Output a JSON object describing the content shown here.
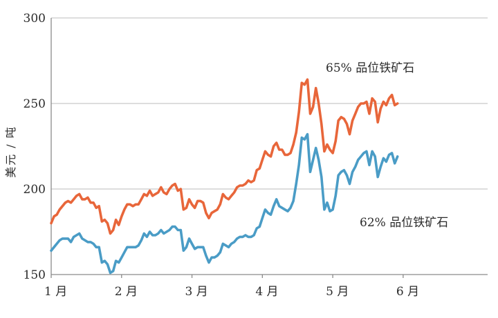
{
  "chart_data": {
    "type": "line",
    "title": "",
    "xlabel": "",
    "ylabel": "美元 / 吨",
    "ylim": [
      150,
      300
    ],
    "yticks": [
      150,
      200,
      250,
      300
    ],
    "xlim": [
      0,
      6.2
    ],
    "x_ticks": [
      {
        "label": "1 月",
        "pos": 0
      },
      {
        "label": "2 月",
        "pos": 1
      },
      {
        "label": "3 月",
        "pos": 2
      },
      {
        "label": "4 月",
        "pos": 3
      },
      {
        "label": "5 月",
        "pos": 4
      },
      {
        "label": "6 月",
        "pos": 5
      }
    ],
    "grid": true,
    "colors": {
      "fe65": "#e8663a",
      "fe62": "#4a9cc6",
      "grid": "#d2d2d2",
      "axis": "#8a8a8a"
    },
    "series": [
      {
        "name": "65% 品位铁矿石",
        "key": "fe65",
        "points": [
          [
            0.0,
            180
          ],
          [
            0.04,
            184
          ],
          [
            0.08,
            185
          ],
          [
            0.12,
            188
          ],
          [
            0.16,
            190
          ],
          [
            0.2,
            192
          ],
          [
            0.24,
            193
          ],
          [
            0.28,
            192
          ],
          [
            0.32,
            194
          ],
          [
            0.36,
            196
          ],
          [
            0.4,
            197
          ],
          [
            0.44,
            194
          ],
          [
            0.48,
            194
          ],
          [
            0.52,
            195
          ],
          [
            0.56,
            192
          ],
          [
            0.6,
            192
          ],
          [
            0.64,
            189
          ],
          [
            0.68,
            190
          ],
          [
            0.72,
            181
          ],
          [
            0.76,
            182
          ],
          [
            0.8,
            180
          ],
          [
            0.84,
            174
          ],
          [
            0.88,
            176
          ],
          [
            0.92,
            182
          ],
          [
            0.96,
            179
          ],
          [
            1.0,
            184
          ],
          [
            1.04,
            188
          ],
          [
            1.08,
            191
          ],
          [
            1.12,
            191
          ],
          [
            1.16,
            190
          ],
          [
            1.2,
            191
          ],
          [
            1.24,
            191
          ],
          [
            1.28,
            194
          ],
          [
            1.32,
            197
          ],
          [
            1.36,
            196
          ],
          [
            1.4,
            199
          ],
          [
            1.44,
            196
          ],
          [
            1.48,
            197
          ],
          [
            1.52,
            198
          ],
          [
            1.56,
            201
          ],
          [
            1.6,
            198
          ],
          [
            1.64,
            197
          ],
          [
            1.68,
            200
          ],
          [
            1.72,
            202
          ],
          [
            1.76,
            203
          ],
          [
            1.8,
            199
          ],
          [
            1.84,
            200
          ],
          [
            1.88,
            188
          ],
          [
            1.92,
            189
          ],
          [
            1.96,
            194
          ],
          [
            2.0,
            191
          ],
          [
            2.04,
            189
          ],
          [
            2.08,
            193
          ],
          [
            2.12,
            193
          ],
          [
            2.16,
            192
          ],
          [
            2.2,
            186
          ],
          [
            2.24,
            183
          ],
          [
            2.28,
            186
          ],
          [
            2.32,
            187
          ],
          [
            2.36,
            188
          ],
          [
            2.4,
            191
          ],
          [
            2.44,
            197
          ],
          [
            2.48,
            195
          ],
          [
            2.52,
            194
          ],
          [
            2.56,
            196
          ],
          [
            2.6,
            198
          ],
          [
            2.64,
            201
          ],
          [
            2.68,
            202
          ],
          [
            2.72,
            202
          ],
          [
            2.76,
            203
          ],
          [
            2.8,
            205
          ],
          [
            2.84,
            204
          ],
          [
            2.88,
            205
          ],
          [
            2.92,
            211
          ],
          [
            2.96,
            212
          ],
          [
            3.0,
            217
          ],
          [
            3.04,
            222
          ],
          [
            3.08,
            220
          ],
          [
            3.12,
            219
          ],
          [
            3.16,
            225
          ],
          [
            3.2,
            227
          ],
          [
            3.24,
            223
          ],
          [
            3.28,
            223
          ],
          [
            3.32,
            220
          ],
          [
            3.36,
            220
          ],
          [
            3.4,
            221
          ],
          [
            3.44,
            226
          ],
          [
            3.48,
            233
          ],
          [
            3.52,
            245
          ],
          [
            3.56,
            262
          ],
          [
            3.6,
            261
          ],
          [
            3.64,
            264
          ],
          [
            3.68,
            244
          ],
          [
            3.72,
            248
          ],
          [
            3.76,
            259
          ],
          [
            3.8,
            250
          ],
          [
            3.84,
            238
          ],
          [
            3.88,
            222
          ],
          [
            3.92,
            226
          ],
          [
            3.96,
            223
          ],
          [
            4.0,
            221
          ],
          [
            4.04,
            228
          ],
          [
            4.08,
            240
          ],
          [
            4.12,
            242
          ],
          [
            4.16,
            241
          ],
          [
            4.2,
            238
          ],
          [
            4.24,
            232
          ],
          [
            4.28,
            240
          ],
          [
            4.32,
            244
          ],
          [
            4.36,
            248
          ],
          [
            4.4,
            250
          ],
          [
            4.44,
            250
          ],
          [
            4.48,
            251
          ],
          [
            4.52,
            244
          ],
          [
            4.56,
            253
          ],
          [
            4.6,
            251
          ],
          [
            4.64,
            239
          ],
          [
            4.68,
            247
          ],
          [
            4.72,
            251
          ],
          [
            4.76,
            249
          ],
          [
            4.8,
            253
          ],
          [
            4.84,
            255
          ],
          [
            4.88,
            249
          ],
          [
            4.92,
            250
          ]
        ]
      },
      {
        "name": "62% 品位铁矿石",
        "key": "fe62",
        "points": [
          [
            0.0,
            164
          ],
          [
            0.04,
            166
          ],
          [
            0.08,
            168
          ],
          [
            0.12,
            170
          ],
          [
            0.16,
            171
          ],
          [
            0.2,
            171
          ],
          [
            0.24,
            171
          ],
          [
            0.28,
            169
          ],
          [
            0.32,
            172
          ],
          [
            0.36,
            173
          ],
          [
            0.4,
            174
          ],
          [
            0.44,
            171
          ],
          [
            0.48,
            170
          ],
          [
            0.52,
            169
          ],
          [
            0.56,
            169
          ],
          [
            0.6,
            168
          ],
          [
            0.64,
            166
          ],
          [
            0.68,
            166
          ],
          [
            0.72,
            157
          ],
          [
            0.76,
            158
          ],
          [
            0.8,
            156
          ],
          [
            0.84,
            151
          ],
          [
            0.88,
            152
          ],
          [
            0.92,
            158
          ],
          [
            0.96,
            157
          ],
          [
            1.0,
            160
          ],
          [
            1.04,
            163
          ],
          [
            1.08,
            166
          ],
          [
            1.12,
            166
          ],
          [
            1.16,
            166
          ],
          [
            1.2,
            166
          ],
          [
            1.24,
            167
          ],
          [
            1.28,
            170
          ],
          [
            1.32,
            174
          ],
          [
            1.36,
            172
          ],
          [
            1.4,
            175
          ],
          [
            1.44,
            173
          ],
          [
            1.48,
            173
          ],
          [
            1.52,
            174
          ],
          [
            1.56,
            176
          ],
          [
            1.6,
            174
          ],
          [
            1.64,
            175
          ],
          [
            1.68,
            176
          ],
          [
            1.72,
            178
          ],
          [
            1.76,
            178
          ],
          [
            1.8,
            176
          ],
          [
            1.84,
            176
          ],
          [
            1.88,
            164
          ],
          [
            1.92,
            166
          ],
          [
            1.96,
            171
          ],
          [
            2.0,
            168
          ],
          [
            2.04,
            165
          ],
          [
            2.08,
            166
          ],
          [
            2.12,
            166
          ],
          [
            2.16,
            166
          ],
          [
            2.2,
            161
          ],
          [
            2.24,
            157
          ],
          [
            2.28,
            160
          ],
          [
            2.32,
            160
          ],
          [
            2.36,
            161
          ],
          [
            2.4,
            163
          ],
          [
            2.44,
            168
          ],
          [
            2.48,
            167
          ],
          [
            2.52,
            166
          ],
          [
            2.56,
            168
          ],
          [
            2.6,
            169
          ],
          [
            2.64,
            171
          ],
          [
            2.68,
            172
          ],
          [
            2.72,
            172
          ],
          [
            2.76,
            173
          ],
          [
            2.8,
            172
          ],
          [
            2.84,
            172
          ],
          [
            2.88,
            173
          ],
          [
            2.92,
            177
          ],
          [
            2.96,
            178
          ],
          [
            3.0,
            183
          ],
          [
            3.04,
            188
          ],
          [
            3.08,
            186
          ],
          [
            3.12,
            185
          ],
          [
            3.16,
            190
          ],
          [
            3.2,
            194
          ],
          [
            3.24,
            190
          ],
          [
            3.28,
            189
          ],
          [
            3.32,
            188
          ],
          [
            3.36,
            187
          ],
          [
            3.4,
            189
          ],
          [
            3.44,
            193
          ],
          [
            3.48,
            203
          ],
          [
            3.52,
            214
          ],
          [
            3.56,
            230
          ],
          [
            3.6,
            229
          ],
          [
            3.64,
            232
          ],
          [
            3.68,
            210
          ],
          [
            3.72,
            217
          ],
          [
            3.76,
            224
          ],
          [
            3.8,
            217
          ],
          [
            3.84,
            207
          ],
          [
            3.88,
            188
          ],
          [
            3.92,
            192
          ],
          [
            3.96,
            187
          ],
          [
            4.0,
            188
          ],
          [
            4.04,
            196
          ],
          [
            4.08,
            208
          ],
          [
            4.12,
            210
          ],
          [
            4.16,
            211
          ],
          [
            4.2,
            208
          ],
          [
            4.24,
            203
          ],
          [
            4.28,
            210
          ],
          [
            4.32,
            213
          ],
          [
            4.36,
            217
          ],
          [
            4.4,
            219
          ],
          [
            4.44,
            221
          ],
          [
            4.48,
            222
          ],
          [
            4.52,
            214
          ],
          [
            4.56,
            222
          ],
          [
            4.6,
            219
          ],
          [
            4.64,
            207
          ],
          [
            4.68,
            213
          ],
          [
            4.72,
            218
          ],
          [
            4.76,
            216
          ],
          [
            4.8,
            220
          ],
          [
            4.84,
            221
          ],
          [
            4.88,
            215
          ],
          [
            4.92,
            219
          ]
        ]
      }
    ],
    "annotations": [
      {
        "text": "65% 品位铁矿石",
        "series": "fe65"
      },
      {
        "text": "62% 品位铁矿石",
        "series": "fe62"
      }
    ]
  }
}
